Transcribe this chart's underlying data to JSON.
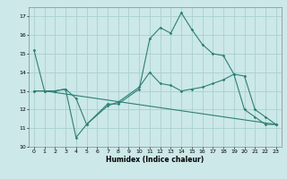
{
  "xlabel": "Humidex (Indice chaleur)",
  "background_color": "#cce8e8",
  "grid_color": "#aacfcf",
  "line_color": "#2e7f75",
  "xlim": [
    -0.5,
    23.5
  ],
  "ylim": [
    10,
    17.5
  ],
  "yticks": [
    10,
    11,
    12,
    13,
    14,
    15,
    16,
    17
  ],
  "xticks": [
    0,
    1,
    2,
    3,
    4,
    5,
    6,
    7,
    8,
    9,
    10,
    11,
    12,
    13,
    14,
    15,
    16,
    17,
    18,
    19,
    20,
    21,
    22,
    23
  ],
  "line1_x": [
    0,
    1,
    2,
    3,
    4,
    5,
    7,
    8,
    10,
    11,
    12,
    13,
    14,
    15,
    16,
    17,
    18,
    19,
    20,
    21,
    22,
    23
  ],
  "line1_y": [
    15.2,
    13.0,
    13.0,
    13.1,
    10.5,
    11.2,
    12.3,
    12.3,
    13.1,
    15.8,
    16.4,
    16.1,
    17.2,
    16.3,
    15.5,
    15.0,
    14.9,
    13.9,
    12.0,
    11.6,
    11.2,
    11.2
  ],
  "line2_x": [
    0,
    1,
    2,
    3,
    4,
    5,
    7,
    8,
    10,
    11,
    12,
    13,
    14,
    15,
    16,
    17,
    18,
    19,
    20,
    21,
    22,
    23
  ],
  "line2_y": [
    13.0,
    13.0,
    13.0,
    13.1,
    12.6,
    11.2,
    12.2,
    12.4,
    13.2,
    14.0,
    13.4,
    13.3,
    13.0,
    13.1,
    13.2,
    13.4,
    13.6,
    13.9,
    13.8,
    12.0,
    11.6,
    11.2
  ],
  "line3_x": [
    0,
    1,
    23
  ],
  "line3_y": [
    13.0,
    13.0,
    11.2
  ]
}
